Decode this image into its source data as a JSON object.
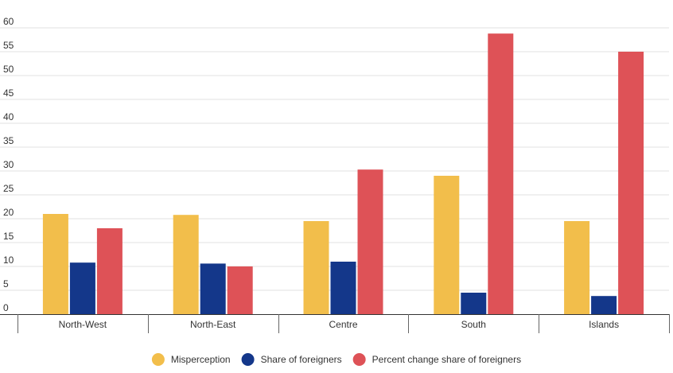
{
  "chart_data": {
    "type": "bar",
    "title": "",
    "xlabel": "",
    "ylabel": "",
    "categories": [
      "North-West",
      "North-East",
      "Centre",
      "South",
      "Islands"
    ],
    "series": [
      {
        "name": "Misperception",
        "color": "#f2be4b",
        "values": [
          21,
          20.8,
          19.5,
          29,
          19.5
        ]
      },
      {
        "name": "Share of foreigners",
        "color": "#14378a",
        "values": [
          10.8,
          10.6,
          11,
          4.5,
          3.8
        ]
      },
      {
        "name": "Percent change share of foreigners",
        "color": "#de5257",
        "values": [
          18,
          10,
          30.3,
          58.8,
          55
        ]
      }
    ],
    "ylim": [
      0,
      60
    ],
    "yticks": [
      0,
      5,
      10,
      15,
      20,
      25,
      30,
      35,
      40,
      45,
      50,
      55,
      60
    ],
    "grid": true,
    "legend_position": "bottom-center"
  }
}
